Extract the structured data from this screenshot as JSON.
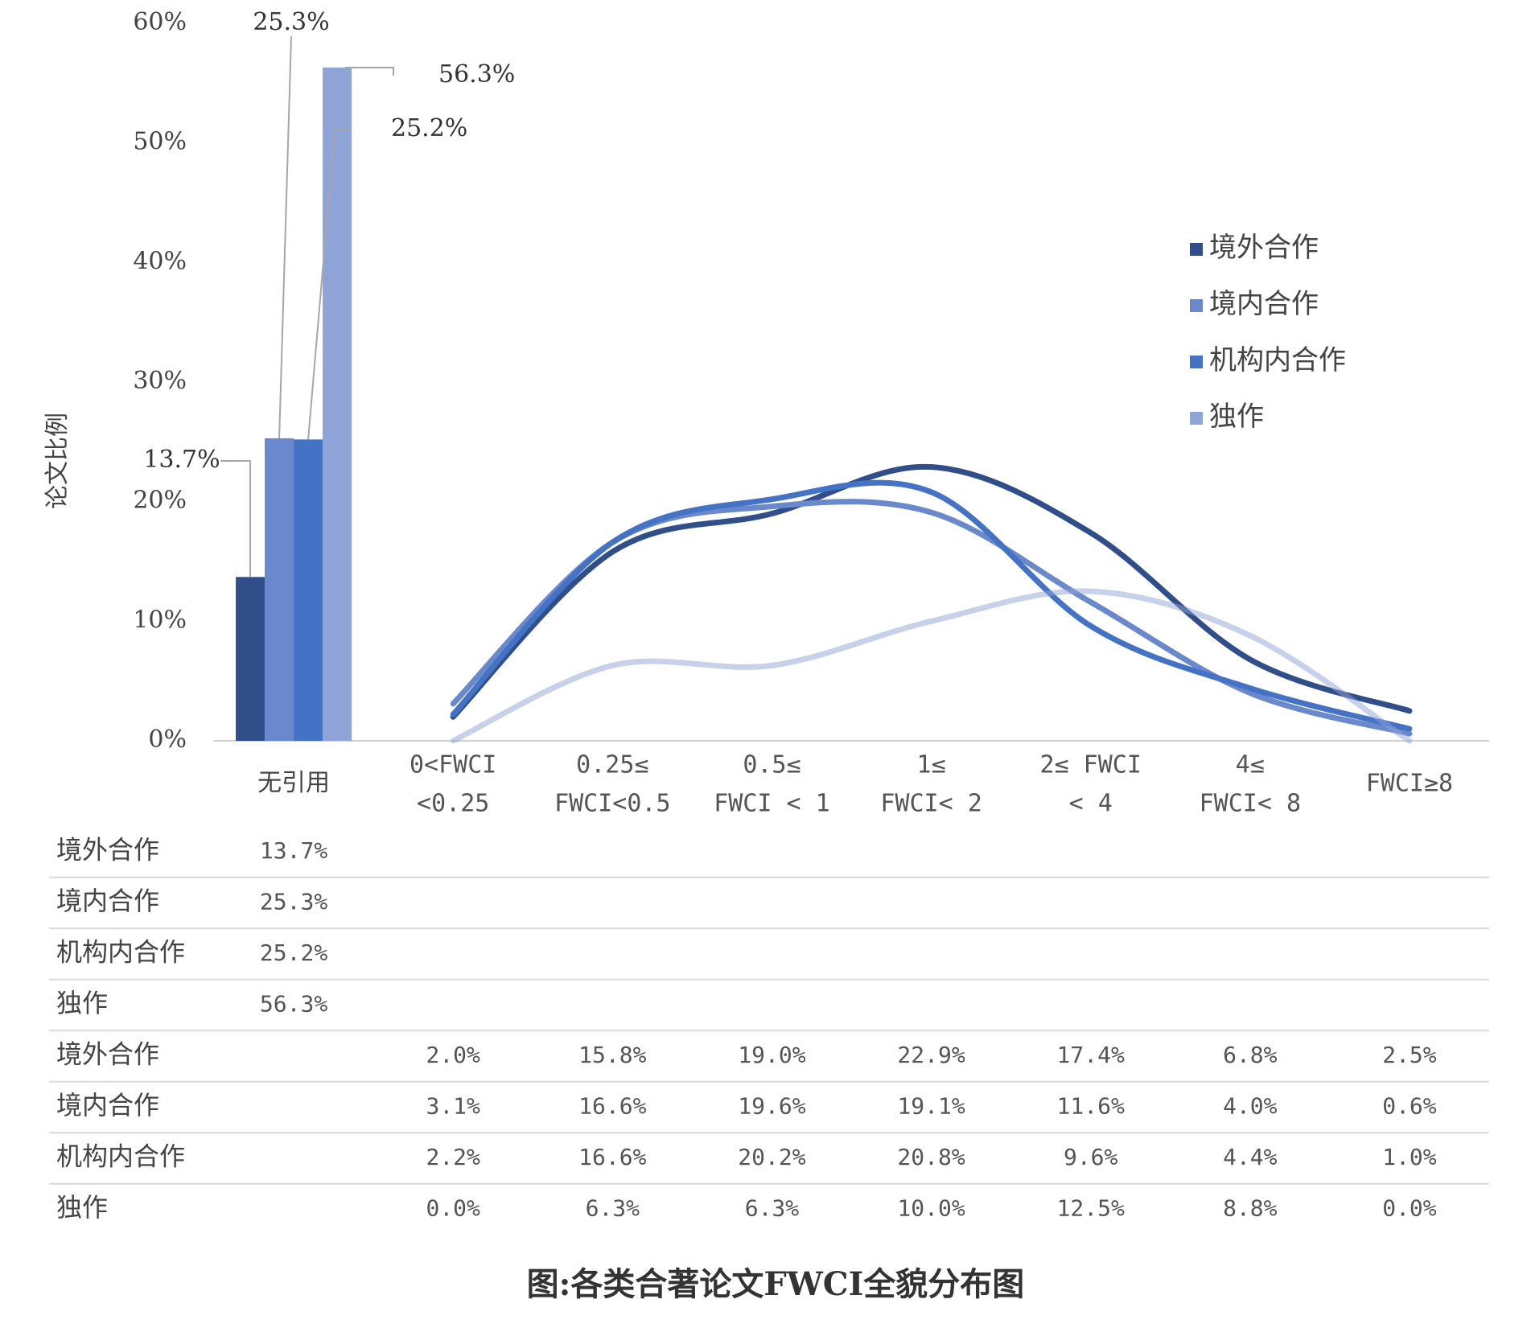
{
  "chart_data": {
    "type": "combo",
    "y_axis_label": "论文比例",
    "caption": "图:各类合著论文FWCI全貌分布图",
    "categories": [
      [
        "无引用"
      ],
      [
        "0<FWCI",
        "<0.25"
      ],
      [
        "0.25≤",
        "FWCI<0.5"
      ],
      [
        "0.5≤",
        "FWCI < 1"
      ],
      [
        "1≤",
        "FWCI< 2"
      ],
      [
        "2≤ FWCI",
        "< 4"
      ],
      [
        "4≤",
        "FWCI< 8"
      ],
      [
        "FWCI≥8"
      ]
    ],
    "ylim": [
      0,
      60
    ],
    "yticks": [
      {
        "value": 0,
        "label": "0%"
      },
      {
        "value": 10,
        "label": "10%"
      },
      {
        "value": 20,
        "label": "20%"
      },
      {
        "value": 30,
        "label": "30%"
      },
      {
        "value": 40,
        "label": "40%"
      },
      {
        "value": 50,
        "label": "50%"
      },
      {
        "value": 60,
        "label": "60%"
      }
    ],
    "legend": "right",
    "series": [
      {
        "name": "境外合作",
        "color": "#2f4e8a",
        "values": [
          13.7,
          2.0,
          15.8,
          19.0,
          22.9,
          17.4,
          6.8,
          2.5
        ],
        "value_labels": [
          "13.7%",
          "2.0%",
          "15.8%",
          "19.0%",
          "22.9%",
          "17.4%",
          "6.8%",
          "2.5%"
        ]
      },
      {
        "name": "境内合作",
        "color": "#6a88cc",
        "values": [
          25.3,
          3.1,
          16.6,
          19.6,
          19.1,
          11.6,
          4.0,
          0.6
        ],
        "value_labels": [
          "25.3%",
          "3.1%",
          "16.6%",
          "19.6%",
          "19.1%",
          "11.6%",
          "4.0%",
          "0.6%"
        ]
      },
      {
        "name": "机构内合作",
        "color": "#4472c4",
        "values": [
          25.2,
          2.2,
          16.6,
          20.2,
          20.8,
          9.6,
          4.4,
          1.0
        ],
        "value_labels": [
          "25.2%",
          "2.2%",
          "16.6%",
          "20.2%",
          "20.8%",
          "9.6%",
          "4.4%",
          "1.0%"
        ]
      },
      {
        "name": "独作",
        "color": "#8fa4d6",
        "values": [
          56.3,
          0.0,
          6.3,
          6.3,
          10.0,
          12.5,
          8.8,
          0.0
        ],
        "value_labels": [
          "56.3%",
          "0.0%",
          "6.3%",
          "6.3%",
          "10.0%",
          "12.5%",
          "8.8%",
          "0.0%"
        ]
      }
    ]
  }
}
